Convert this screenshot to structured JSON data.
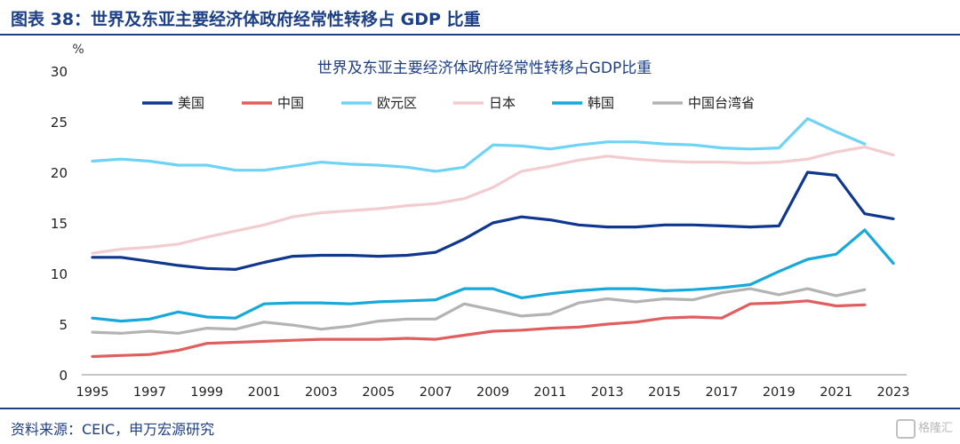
{
  "header": {
    "title": "图表 38：世界及东亚主要经济体政府经常性转移占 GDP 比重"
  },
  "footer": {
    "source": "资料来源：CEIC，申万宏源研究",
    "watermark": "格隆汇"
  },
  "chart_data": {
    "type": "line",
    "title": "世界及东亚主要经济体政府经常性转移占GDP比重",
    "ylabel": "%",
    "xlabel": "",
    "ylim": [
      0,
      30
    ],
    "xlim": [
      1995,
      2023
    ],
    "yticks": [
      0,
      5,
      10,
      15,
      20,
      25,
      30
    ],
    "xticks": [
      1995,
      1997,
      1999,
      2001,
      2003,
      2005,
      2007,
      2009,
      2011,
      2013,
      2015,
      2017,
      2019,
      2021,
      2023
    ],
    "grid": false,
    "legend_position": "top",
    "series": [
      {
        "name": "美国",
        "color": "#10378e",
        "x": [
          1995,
          1996,
          1997,
          1998,
          1999,
          2000,
          2001,
          2002,
          2003,
          2004,
          2005,
          2006,
          2007,
          2008,
          2009,
          2010,
          2011,
          2012,
          2013,
          2014,
          2015,
          2016,
          2017,
          2018,
          2019,
          2020,
          2021,
          2022,
          2023
        ],
        "values": [
          11.6,
          11.6,
          11.2,
          10.8,
          10.5,
          10.4,
          11.1,
          11.7,
          11.8,
          11.8,
          11.7,
          11.8,
          12.1,
          13.4,
          15.0,
          15.6,
          15.3,
          14.8,
          14.6,
          14.6,
          14.8,
          14.8,
          14.7,
          14.6,
          14.7,
          20.0,
          19.7,
          15.9,
          15.4
        ]
      },
      {
        "name": "中国",
        "color": "#e15e5e",
        "x": [
          1995,
          1996,
          1997,
          1998,
          1999,
          2000,
          2001,
          2002,
          2003,
          2004,
          2005,
          2006,
          2007,
          2008,
          2009,
          2010,
          2011,
          2012,
          2013,
          2014,
          2015,
          2016,
          2017,
          2018,
          2019,
          2020,
          2021,
          2022
        ],
        "values": [
          1.8,
          1.9,
          2.0,
          2.4,
          3.1,
          3.2,
          3.3,
          3.4,
          3.5,
          3.5,
          3.5,
          3.6,
          3.5,
          3.9,
          4.3,
          4.4,
          4.6,
          4.7,
          5.0,
          5.2,
          5.6,
          5.7,
          5.6,
          7.0,
          7.1,
          7.3,
          6.8,
          6.9
        ]
      },
      {
        "name": "欧元区",
        "color": "#6fd3f5",
        "x": [
          1995,
          1996,
          1997,
          1998,
          1999,
          2000,
          2001,
          2002,
          2003,
          2004,
          2005,
          2006,
          2007,
          2008,
          2009,
          2010,
          2011,
          2012,
          2013,
          2014,
          2015,
          2016,
          2017,
          2018,
          2019,
          2020,
          2021,
          2022
        ],
        "values": [
          21.1,
          21.3,
          21.1,
          20.7,
          20.7,
          20.2,
          20.2,
          20.6,
          21.0,
          20.8,
          20.7,
          20.5,
          20.1,
          20.5,
          22.7,
          22.6,
          22.3,
          22.7,
          23.0,
          23.0,
          22.8,
          22.7,
          22.4,
          22.3,
          22.4,
          25.3,
          24.0,
          22.8
        ]
      },
      {
        "name": "日本",
        "color": "#f3cccf",
        "x": [
          1995,
          1996,
          1997,
          1998,
          1999,
          2000,
          2001,
          2002,
          2003,
          2004,
          2005,
          2006,
          2007,
          2008,
          2009,
          2010,
          2011,
          2012,
          2013,
          2014,
          2015,
          2016,
          2017,
          2018,
          2019,
          2020,
          2021,
          2022,
          2023
        ],
        "values": [
          12.0,
          12.4,
          12.6,
          12.9,
          13.6,
          14.2,
          14.8,
          15.6,
          16.0,
          16.2,
          16.4,
          16.7,
          16.9,
          17.4,
          18.5,
          20.1,
          20.6,
          21.2,
          21.6,
          21.3,
          21.1,
          21.0,
          21.0,
          20.9,
          21.0,
          21.3,
          22.0,
          22.5,
          21.7
        ]
      },
      {
        "name": "韩国",
        "color": "#17a8dc",
        "x": [
          1995,
          1996,
          1997,
          1998,
          1999,
          2000,
          2001,
          2002,
          2003,
          2004,
          2005,
          2006,
          2007,
          2008,
          2009,
          2010,
          2011,
          2012,
          2013,
          2014,
          2015,
          2016,
          2017,
          2018,
          2019,
          2020,
          2021,
          2022,
          2023
        ],
        "values": [
          5.6,
          5.3,
          5.5,
          6.2,
          5.7,
          5.6,
          7.0,
          7.1,
          7.1,
          7.0,
          7.2,
          7.3,
          7.4,
          8.5,
          8.5,
          7.6,
          8.0,
          8.3,
          8.5,
          8.5,
          8.3,
          8.4,
          8.6,
          8.9,
          10.2,
          11.4,
          11.9,
          14.3,
          11.0
        ]
      },
      {
        "name": "中国台湾省",
        "color": "#b3b3b3",
        "x": [
          1995,
          1996,
          1997,
          1998,
          1999,
          2000,
          2001,
          2002,
          2003,
          2004,
          2005,
          2006,
          2007,
          2008,
          2009,
          2010,
          2011,
          2012,
          2013,
          2014,
          2015,
          2016,
          2017,
          2018,
          2019,
          2020,
          2021,
          2022
        ],
        "values": [
          4.2,
          4.1,
          4.3,
          4.1,
          4.6,
          4.5,
          5.2,
          4.9,
          4.5,
          4.8,
          5.3,
          5.5,
          5.5,
          7.0,
          6.4,
          5.8,
          6.0,
          7.1,
          7.5,
          7.2,
          7.5,
          7.4,
          8.1,
          8.5,
          7.9,
          8.5,
          7.8,
          8.4
        ]
      }
    ]
  }
}
